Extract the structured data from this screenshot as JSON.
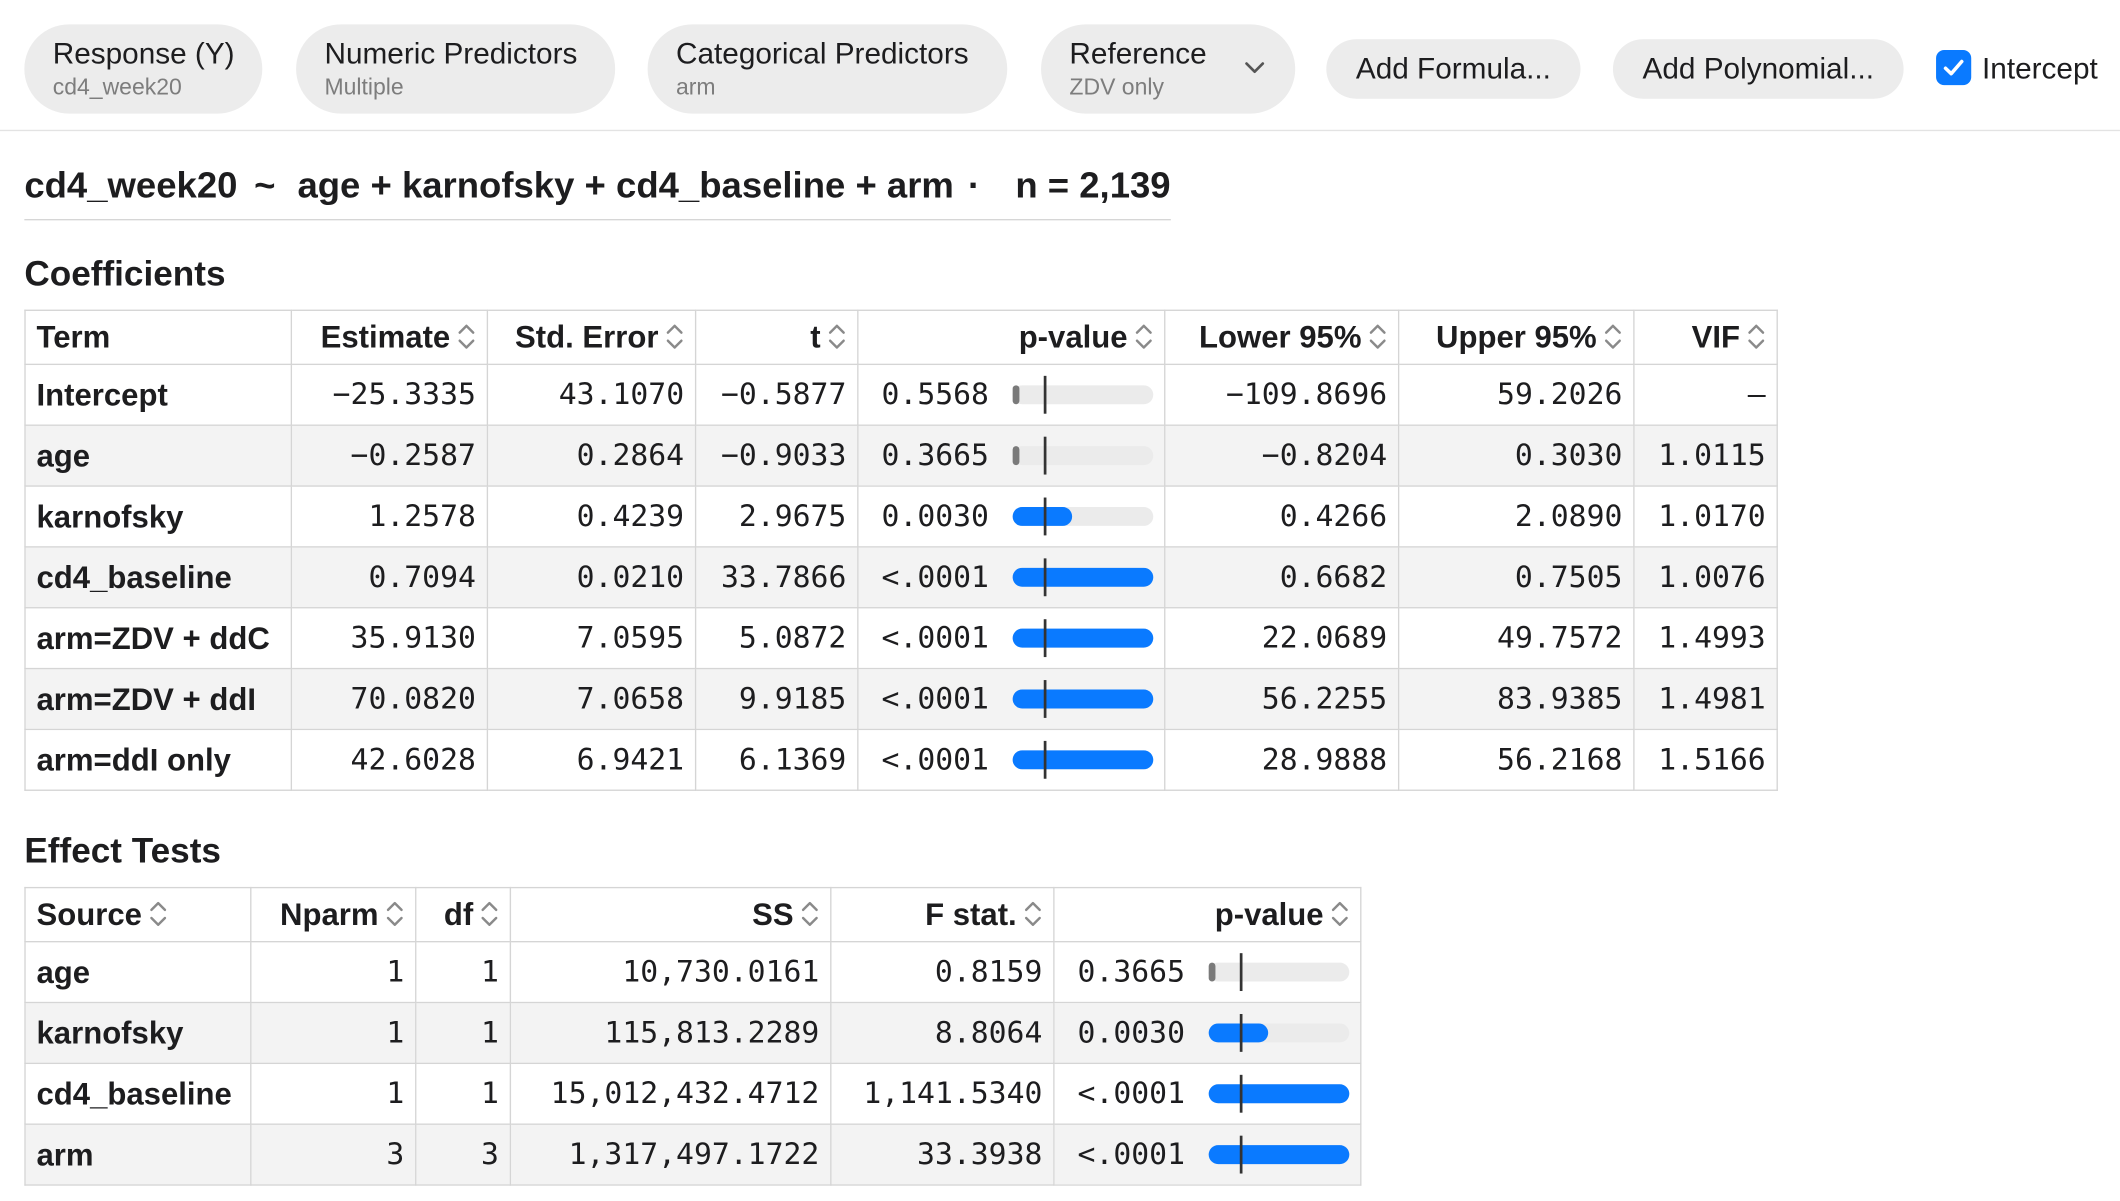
{
  "toolbar": {
    "response": {
      "label": "Response (Y)",
      "value": "cd4_week20"
    },
    "numeric": {
      "label": "Numeric Predictors",
      "value": "Multiple"
    },
    "categorical": {
      "label": "Categorical Predictors",
      "value": "arm"
    },
    "reference": {
      "label": "Reference",
      "value": "ZDV only"
    },
    "add_formula": "Add Formula...",
    "add_polynomial": "Add Polynomial...",
    "intercept": {
      "label": "Intercept",
      "checked": true
    }
  },
  "formula": {
    "response": "cd4_week20",
    "tilde": "~",
    "terms": "age + karnofsky + cd4_baseline + arm",
    "separator": "·",
    "n_label": "n = 2,139"
  },
  "colors": {
    "accent": "#0a7aff",
    "insignificant": "#7a7a7a"
  },
  "coefficients": {
    "title": "Coefficients",
    "headers": [
      "Term",
      "Estimate",
      "Std. Error",
      "t",
      "p-value",
      "Lower 95%",
      "Upper 95%",
      "VIF"
    ],
    "rows": [
      {
        "term": "Intercept",
        "estimate": "−25.3335",
        "se": "43.1070",
        "t": "−0.5877",
        "p": "0.5568",
        "pbar": 0.02,
        "sig": false,
        "lower": "−109.8696",
        "upper": "59.2026",
        "vif": "—"
      },
      {
        "term": "age",
        "estimate": "−0.2587",
        "se": "0.2864",
        "t": "−0.9033",
        "p": "0.3665",
        "pbar": 0.04,
        "sig": false,
        "lower": "−0.8204",
        "upper": "0.3030",
        "vif": "1.0115"
      },
      {
        "term": "karnofsky",
        "estimate": "1.2578",
        "se": "0.4239",
        "t": "2.9675",
        "p": "0.0030",
        "pbar": 0.42,
        "sig": true,
        "lower": "0.4266",
        "upper": "2.0890",
        "vif": "1.0170"
      },
      {
        "term": "cd4_baseline",
        "estimate": "0.7094",
        "se": "0.0210",
        "t": "33.7866",
        "p": "<.0001",
        "pbar": 1.0,
        "sig": true,
        "lower": "0.6682",
        "upper": "0.7505",
        "vif": "1.0076"
      },
      {
        "term": "arm=ZDV + ddC",
        "estimate": "35.9130",
        "se": "7.0595",
        "t": "5.0872",
        "p": "<.0001",
        "pbar": 1.0,
        "sig": true,
        "lower": "22.0689",
        "upper": "49.7572",
        "vif": "1.4993"
      },
      {
        "term": "arm=ZDV + ddI",
        "estimate": "70.0820",
        "se": "7.0658",
        "t": "9.9185",
        "p": "<.0001",
        "pbar": 1.0,
        "sig": true,
        "lower": "56.2255",
        "upper": "83.9385",
        "vif": "1.4981"
      },
      {
        "term": "arm=ddI only",
        "estimate": "42.6028",
        "se": "6.9421",
        "t": "6.1369",
        "p": "<.0001",
        "pbar": 1.0,
        "sig": true,
        "lower": "28.9888",
        "upper": "56.2168",
        "vif": "1.5166"
      }
    ]
  },
  "effects": {
    "title": "Effect Tests",
    "headers": [
      "Source",
      "Nparm",
      "df",
      "SS",
      "F stat.",
      "p-value"
    ],
    "rows": [
      {
        "source": "age",
        "nparm": "1",
        "df": "1",
        "ss": "10,730.0161",
        "f": "0.8159",
        "p": "0.3665",
        "pbar": 0.04,
        "sig": false
      },
      {
        "source": "karnofsky",
        "nparm": "1",
        "df": "1",
        "ss": "115,813.2289",
        "f": "8.8064",
        "p": "0.0030",
        "pbar": 0.42,
        "sig": true
      },
      {
        "source": "cd4_baseline",
        "nparm": "1",
        "df": "1",
        "ss": "15,012,432.4712",
        "f": "1,141.5340",
        "p": "<.0001",
        "pbar": 1.0,
        "sig": true
      },
      {
        "source": "arm",
        "nparm": "3",
        "df": "3",
        "ss": "1,317,497.1722",
        "f": "33.3938",
        "p": "<.0001",
        "pbar": 1.0,
        "sig": true
      }
    ]
  }
}
